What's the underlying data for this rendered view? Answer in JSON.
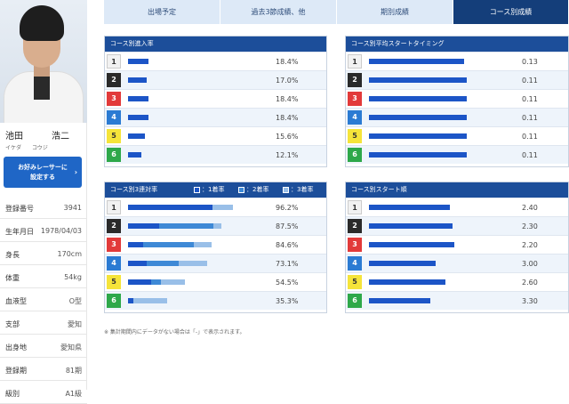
{
  "racer": {
    "surname": "池田",
    "given": "浩二",
    "surname_kana": "イケダ",
    "given_kana": "コウジ",
    "favorite_button": "お好みレーサーに設定する",
    "profile": [
      {
        "key": "登録番号",
        "value": "3941"
      },
      {
        "key": "生年月日",
        "value": "1978/04/03"
      },
      {
        "key": "身長",
        "value": "170cm"
      },
      {
        "key": "体重",
        "value": "54kg"
      },
      {
        "key": "血液型",
        "value": "O型"
      },
      {
        "key": "支部",
        "value": "愛知"
      },
      {
        "key": "出身地",
        "value": "愛知県"
      },
      {
        "key": "登録期",
        "value": "81期"
      },
      {
        "key": "級別",
        "value": "A1級"
      }
    ]
  },
  "tabs": [
    {
      "label": "出場予定",
      "active": false
    },
    {
      "label": "過去3節成績、他",
      "active": false
    },
    {
      "label": "期別成績",
      "active": false
    },
    {
      "label": "コース別成績",
      "active": true
    }
  ],
  "panels": {
    "entry": {
      "title": "コース別進入率",
      "rows": [
        {
          "course": "1",
          "value": "18.4%",
          "frac": 0.152
        },
        {
          "course": "2",
          "value": "17.0%",
          "frac": 0.14
        },
        {
          "course": "3",
          "value": "18.4%",
          "frac": 0.152
        },
        {
          "course": "4",
          "value": "18.4%",
          "frac": 0.152
        },
        {
          "course": "5",
          "value": "15.6%",
          "frac": 0.129
        },
        {
          "course": "6",
          "value": "12.1%",
          "frac": 0.1
        }
      ]
    },
    "avg_start": {
      "title": "コース別平均スタートタイミング",
      "rows": [
        {
          "course": "1",
          "value": "0.13",
          "frac": 0.67
        },
        {
          "course": "2",
          "value": "0.11",
          "frac": 0.69
        },
        {
          "course": "3",
          "value": "0.11",
          "frac": 0.69
        },
        {
          "course": "4",
          "value": "0.11",
          "frac": 0.69
        },
        {
          "course": "5",
          "value": "0.11",
          "frac": 0.69
        },
        {
          "course": "6",
          "value": "0.11",
          "frac": 0.69
        }
      ]
    },
    "top3": {
      "title": "コース別3連対率",
      "legend": [
        "：1着率",
        "：2着率",
        "：3着率"
      ],
      "rows": [
        {
          "course": "1",
          "value": "96.2%",
          "first": 0.63,
          "second": 0.0,
          "third": 0.15
        },
        {
          "course": "2",
          "value": "87.5%",
          "first": 0.23,
          "second": 0.41,
          "third": 0.06
        },
        {
          "course": "3",
          "value": "84.6%",
          "first": 0.11,
          "second": 0.38,
          "third": 0.13
        },
        {
          "course": "4",
          "value": "73.1%",
          "first": 0.14,
          "second": 0.24,
          "third": 0.21
        },
        {
          "course": "5",
          "value": "54.5%",
          "first": 0.17,
          "second": 0.07,
          "third": 0.18
        },
        {
          "course": "6",
          "value": "35.3%",
          "first": 0.04,
          "second": 0.0,
          "third": 0.25
        }
      ]
    },
    "start_rank": {
      "title": "コース別スタート順",
      "rows": [
        {
          "course": "1",
          "value": "2.40",
          "frac": 0.57
        },
        {
          "course": "2",
          "value": "2.30",
          "frac": 0.59
        },
        {
          "course": "3",
          "value": "2.20",
          "frac": 0.6
        },
        {
          "course": "4",
          "value": "3.00",
          "frac": 0.47
        },
        {
          "course": "5",
          "value": "2.60",
          "frac": 0.54
        },
        {
          "course": "6",
          "value": "3.30",
          "frac": 0.43
        }
      ]
    }
  },
  "note": "※ 集計期間内にデータがない場合は「-」で表示されます。",
  "colors": {
    "header": "#1c4e9a",
    "active_tab": "#143e7a",
    "bar_primary": "#1c55c7",
    "bar_secondary": "#3e89d6",
    "bar_tertiary": "#99bfe8"
  }
}
